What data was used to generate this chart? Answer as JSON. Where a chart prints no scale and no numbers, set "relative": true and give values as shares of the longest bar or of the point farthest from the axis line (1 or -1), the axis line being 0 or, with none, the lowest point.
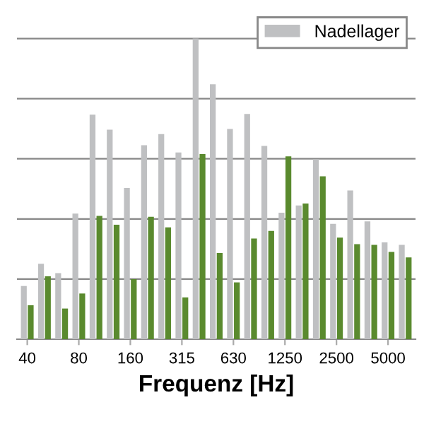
{
  "chart_data": {
    "type": "bar",
    "relative": true,
    "xlabel": "Frequenz [Hz]",
    "categories": [
      "40",
      null,
      null,
      "80",
      null,
      null,
      "160",
      null,
      null,
      "315",
      null,
      null,
      "630",
      null,
      null,
      "1250",
      null,
      null,
      "2500",
      null,
      null,
      "5000",
      null
    ],
    "series": [
      {
        "name": "Nadellager",
        "color": "#bfc0c2",
        "values": [
          0.177,
          0.251,
          0.22,
          0.418,
          0.747,
          0.697,
          0.503,
          0.645,
          0.682,
          0.621,
          1,
          0.848,
          0.699,
          0.749,
          0.643,
          0.421,
          0.445,
          0.599,
          0.384,
          0.495,
          0.392,
          0.322,
          0.314
        ]
      },
      {
        "color": "#5a8a2e",
        "values": [
          0.113,
          0.209,
          0.102,
          0.152,
          0.41,
          0.381,
          0.2,
          0.407,
          0.372,
          0.139,
          0.616,
          0.287,
          0.189,
          0.335,
          0.36,
          0.608,
          0.451,
          0.542,
          0.338,
          0.316,
          0.314,
          0.29,
          0.272
        ]
      }
    ],
    "grid": "y",
    "legend": "top right"
  }
}
